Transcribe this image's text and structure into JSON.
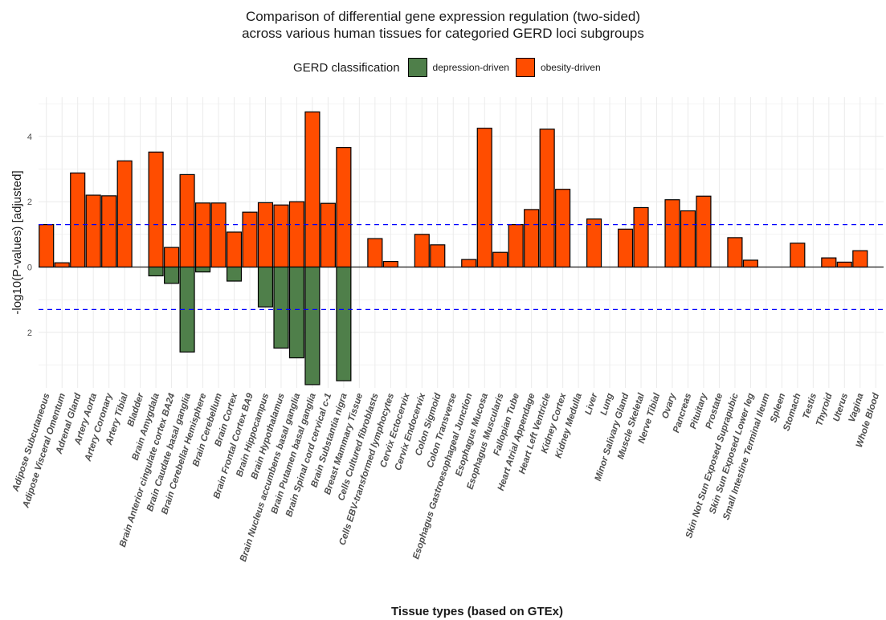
{
  "title_line1": "Comparison of differential gene expression regulation (two-sided)",
  "title_line2": "across various human tissues for categoried GERD loci subgroups",
  "legend": {
    "title": "GERD classification",
    "items": [
      {
        "label": "depression-driven",
        "color": "#4f7f4a"
      },
      {
        "label": "obesity-driven",
        "color": "#ff4d00"
      }
    ]
  },
  "chart_data": {
    "type": "bar",
    "title": "Comparison of differential gene expression regulation (two-sided) across various human tissues for categoried GERD loci subgroups",
    "xlabel": "Tissue types (based on GTEx)",
    "ylabel": "-log10(P-values) [adjusted]",
    "ylim": [
      -3.7,
      5.2
    ],
    "yticks": [
      -2,
      0,
      2,
      4
    ],
    "ytick_labels": [
      "2",
      "0",
      "2",
      "4"
    ],
    "threshold_lines": [
      1.3,
      -1.3
    ],
    "threshold_color": "#0000ff",
    "grid": true,
    "legend_position": "top",
    "categories": [
      "Adipose Subcutaneous",
      "Adipose Visceral Omentum",
      "Adrenal Gland",
      "Artery Aorta",
      "Artery Coronary",
      "Artery Tibial",
      "Bladder",
      "Brain Amygdala",
      "Brain Anterior cingulate cortex BA24",
      "Brain Caudate basal ganglia",
      "Brain Cerebellar Hemisphere",
      "Brain Cerebellum",
      "Brain Cortex",
      "Brain Frontal Cortex BA9",
      "Brain Hippocampus",
      "Brain Hypothalamus",
      "Brain Nucleus accumbens basal ganglia",
      "Brain Putamen basal ganglia",
      "Brain Spinal cord cervical c-1",
      "Brain Substantia nigra",
      "Breast Mammary Tissue",
      "Cells Cultured fibroblasts",
      "Cells EBV-transformed lymphocytes",
      "Cervix Ectocervix",
      "Cervix Endocervix",
      "Colon Sigmoid",
      "Colon Transverse",
      "Esophagus Gastroesophageal Junction",
      "Esophagus Mucosa",
      "Esophagus Muscularis",
      "Fallopian Tube",
      "Heart Atrial Appendage",
      "Heart Left Ventricle",
      "Kidney Cortex",
      "Kidney Medulla",
      "Liver",
      "Lung",
      "Minor Salivary Gland",
      "Muscle Skeletal",
      "Nerve Tibial",
      "Ovary",
      "Pancreas",
      "Pituitary",
      "Prostate",
      "Skin Not Sun Exposed Suprapubic",
      "Skin Sun Exposed Lower leg",
      "Small Intestine Terminal Ileum",
      "Spleen",
      "Stomach",
      "Testis",
      "Thyroid",
      "Uterus",
      "Vagina",
      "Whole Blood"
    ],
    "series": [
      {
        "name": "obesity-driven",
        "color": "#ff4d00",
        "values": [
          1.3,
          0.13,
          2.88,
          2.2,
          2.18,
          3.25,
          0,
          3.52,
          0.6,
          2.83,
          1.96,
          1.96,
          1.07,
          1.68,
          1.97,
          1.9,
          2.0,
          4.75,
          1.95,
          3.66,
          0,
          0.87,
          0.17,
          0,
          1.0,
          0.68,
          0,
          0.23,
          4.25,
          0.45,
          1.3,
          1.76,
          4.22,
          2.38,
          0,
          1.47,
          0,
          1.16,
          1.82,
          0,
          2.06,
          1.72,
          2.17,
          0,
          0.9,
          0.21,
          0,
          0,
          0.73,
          0,
          0.28,
          0.15,
          0.5,
          0
        ]
      },
      {
        "name": "depression-driven",
        "color": "#4f7f4a",
        "values": [
          0,
          0,
          0,
          0,
          0,
          0,
          0,
          0.27,
          0.5,
          2.6,
          0.15,
          0,
          0.43,
          0,
          1.22,
          2.48,
          2.78,
          3.6,
          0,
          3.48,
          0,
          0,
          0,
          0,
          0,
          0,
          0,
          0,
          0,
          0,
          0,
          0,
          0,
          0,
          0,
          0,
          0,
          0,
          0,
          0,
          0,
          0,
          0,
          0,
          0,
          0,
          0,
          0,
          0,
          0,
          0,
          0,
          0,
          0
        ]
      }
    ]
  }
}
